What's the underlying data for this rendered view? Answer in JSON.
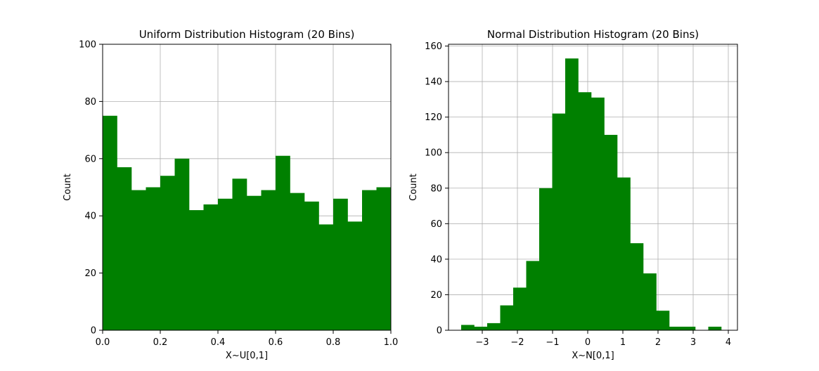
{
  "figure": {
    "bar_color": "#008000",
    "grid_color": "#b0b0b0"
  },
  "chart_data": [
    {
      "type": "bar",
      "title": "Uniform Distribution Histogram (20 Bins)",
      "xlabel": "X~U[0,1]",
      "ylabel": "Count",
      "xlim": [
        0.0,
        1.0
      ],
      "ylim": [
        0,
        100
      ],
      "xticks": [
        0.0,
        0.2,
        0.4,
        0.6,
        0.8,
        1.0
      ],
      "xtick_labels": [
        "0.0",
        "0.2",
        "0.4",
        "0.6",
        "0.8",
        "1.0"
      ],
      "yticks": [
        0,
        20,
        40,
        60,
        80,
        100
      ],
      "ytick_labels": [
        "0",
        "20",
        "40",
        "60",
        "80",
        "100"
      ],
      "grid": true,
      "bin_edges": [
        0.0,
        0.05,
        0.1,
        0.15,
        0.2,
        0.25,
        0.3,
        0.35,
        0.4,
        0.45,
        0.5,
        0.55,
        0.6,
        0.65,
        0.7,
        0.75,
        0.8,
        0.85,
        0.9,
        0.95,
        1.0
      ],
      "values": [
        75,
        57,
        49,
        50,
        54,
        60,
        42,
        44,
        46,
        53,
        47,
        49,
        61,
        48,
        45,
        37,
        46,
        38,
        49,
        50
      ]
    },
    {
      "type": "bar",
      "title": "Normal Distribution Histogram (20 Bins)",
      "xlabel": "X~N[0,1]",
      "ylabel": "Count",
      "xlim": [
        -3.96,
        4.26
      ],
      "ylim": [
        0,
        161
      ],
      "xticks": [
        -3,
        -2,
        -1,
        0,
        1,
        2,
        3,
        4
      ],
      "xtick_labels": [
        "−3",
        "−2",
        "−1",
        "0",
        "1",
        "2",
        "3",
        "4"
      ],
      "yticks": [
        0,
        20,
        40,
        60,
        80,
        100,
        120,
        140,
        160
      ],
      "ytick_labels": [
        "0",
        "20",
        "40",
        "60",
        "80",
        "100",
        "120",
        "140",
        "160"
      ],
      "grid": true,
      "bin_edges": [
        -3.6,
        -3.23,
        -2.86,
        -2.49,
        -2.12,
        -1.75,
        -1.38,
        -1.01,
        -0.64,
        -0.27,
        0.1,
        0.47,
        0.84,
        1.21,
        1.58,
        1.95,
        2.32,
        2.69,
        3.06,
        3.43,
        3.8
      ],
      "values": [
        3,
        2,
        4,
        14,
        24,
        39,
        80,
        122,
        153,
        134,
        131,
        110,
        86,
        49,
        32,
        11,
        2,
        2,
        0,
        2
      ]
    }
  ]
}
